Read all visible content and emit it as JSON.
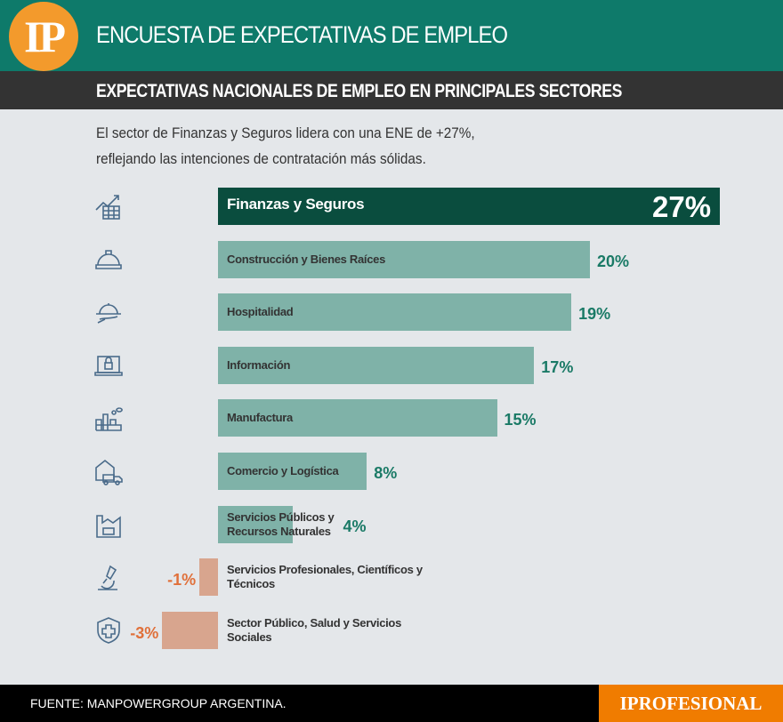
{
  "header": {
    "logo": "IP",
    "title": "ENCUESTA DE EXPECTATIVAS DE EMPLEO"
  },
  "subtitle": "EXPECTATIVAS NACIONALES DE EMPLEO EN PRINCIPALES SECTORES",
  "description": [
    "El sector de Finanzas y Seguros lidera con una ENE de +27%,",
    "reflejando las intenciones de contratación más sólidas."
  ],
  "footer": {
    "source": "FUENTE: MANPOWERGROUP ARGENTINA.",
    "brand": "IPROFESIONAL"
  },
  "colors": {
    "header": "#0e7a6a",
    "highlight_bar": "#0a4d3e",
    "positive_bar": "#7fb2a8",
    "negative_bar": "#d8a58e",
    "positive_text": "#1a7a66",
    "negative_text": "#e0703a",
    "brand": "#f07c00"
  },
  "chart_data": {
    "type": "bar",
    "orientation": "horizontal",
    "unit": "%",
    "categories": [
      "Finanzas y Seguros",
      "Construcción y Bienes Raíces",
      "Hospitalidad",
      "Información",
      "Manufactura",
      "Comercio y Logística",
      "Servicios Públicos y Recursos Naturales",
      "Servicios Profesionales, Científicos y Técnicos",
      "Sector Público, Salud y Servicios Sociales"
    ],
    "values": [
      27,
      20,
      19,
      17,
      15,
      8,
      4,
      -1,
      -3
    ],
    "value_labels": [
      "27%",
      "20%",
      "19%",
      "17%",
      "15%",
      "8%",
      "4%",
      "-1%",
      "-3%"
    ],
    "icons": [
      "finance-chart-icon",
      "hard-hat-icon",
      "cloche-icon",
      "laptop-lock-icon",
      "factory-icon",
      "warehouse-truck-icon",
      "utility-plant-icon",
      "microscope-icon",
      "shield-cross-icon"
    ]
  }
}
